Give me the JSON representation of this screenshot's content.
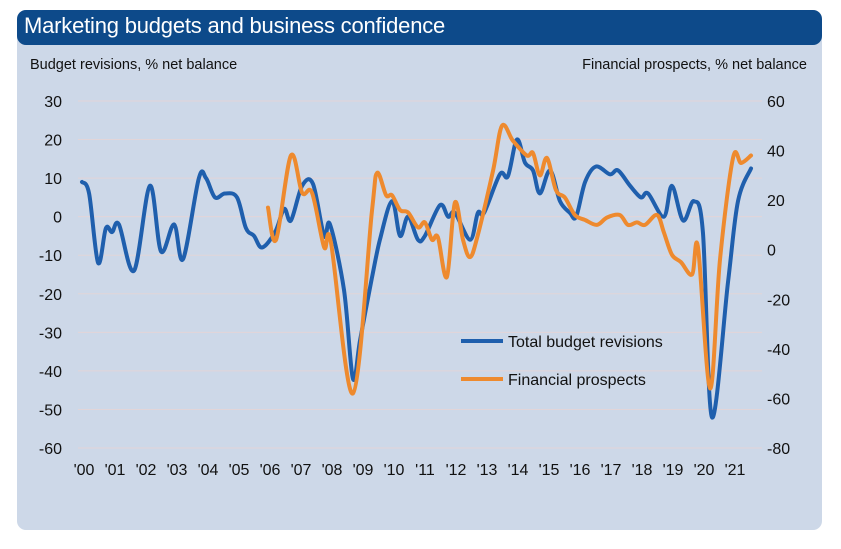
{
  "chart_data": {
    "type": "line",
    "title": "Marketing budgets and business confidence",
    "ylabel_left": "Budget revisions, % net balance",
    "ylabel_right": "Financial prospects, % net balance",
    "xlabel": "",
    "ylim_left": [
      -60,
      30
    ],
    "ylim_right": [
      -80,
      60
    ],
    "yticks_left": [
      30,
      20,
      10,
      0,
      -10,
      -20,
      -30,
      -40,
      -50,
      -60
    ],
    "yticks_right": [
      60,
      40,
      20,
      0,
      -20,
      -40,
      -60,
      -80
    ],
    "xlim": [
      2000,
      2022
    ],
    "xticks": [
      {
        "year": 2000,
        "label": "'00"
      },
      {
        "year": 2001,
        "label": "'01"
      },
      {
        "year": 2002,
        "label": "'02"
      },
      {
        "year": 2003,
        "label": "'03"
      },
      {
        "year": 2004,
        "label": "'04"
      },
      {
        "year": 2005,
        "label": "'05"
      },
      {
        "year": 2006,
        "label": "'06"
      },
      {
        "year": 2007,
        "label": "'07"
      },
      {
        "year": 2008,
        "label": "'08"
      },
      {
        "year": 2009,
        "label": "'09"
      },
      {
        "year": 2010,
        "label": "'10"
      },
      {
        "year": 2011,
        "label": "'11"
      },
      {
        "year": 2012,
        "label": "'12"
      },
      {
        "year": 2013,
        "label": "'13"
      },
      {
        "year": 2014,
        "label": "'14"
      },
      {
        "year": 2015,
        "label": "'15"
      },
      {
        "year": 2016,
        "label": "'16"
      },
      {
        "year": 2017,
        "label": "'17"
      },
      {
        "year": 2018,
        "label": "'18"
      },
      {
        "year": 2019,
        "label": "'19"
      },
      {
        "year": 2020,
        "label": "'20"
      },
      {
        "year": 2021,
        "label": "'21"
      }
    ],
    "grid": true,
    "legend_position": "lower-center",
    "series": [
      {
        "name": "Total budget revisions",
        "axis": "left",
        "color": "#1f5fad",
        "x": [
          2000.0,
          2000.23,
          2000.52,
          2000.77,
          2000.97,
          2001.19,
          2001.68,
          2002.19,
          2002.55,
          2002.97,
          2003.26,
          2003.77,
          2004.0,
          2004.29,
          2004.61,
          2005.0,
          2005.29,
          2005.55,
          2005.81,
          2006.23,
          2006.52,
          2006.74,
          2007.1,
          2007.45,
          2007.81,
          2008.0,
          2008.45,
          2008.74,
          2008.97,
          2009.35,
          2009.61,
          2010.0,
          2010.26,
          2010.52,
          2010.84,
          2011.06,
          2011.55,
          2011.81,
          2012.03,
          2012.52,
          2012.77,
          2012.97,
          2013.48,
          2013.74,
          2014.03,
          2014.29,
          2014.55,
          2014.77,
          2015.1,
          2015.42,
          2015.74,
          2015.94,
          2016.23,
          2016.58,
          2017.03,
          2017.29,
          2017.68,
          2018.03,
          2018.26,
          2018.77,
          2019.03,
          2019.39,
          2019.74,
          2020.03,
          2020.32,
          2020.84,
          2021.16,
          2021.58
        ],
        "values": [
          9,
          6,
          -12,
          -3,
          -4,
          -2,
          -14,
          8,
          -9,
          -2,
          -11,
          10,
          10,
          5,
          6,
          5,
          -3,
          -5,
          -8,
          -4,
          2,
          -1,
          8,
          8.5,
          -5,
          -2,
          -19,
          -42,
          -32,
          -16,
          -6,
          4,
          -5,
          0,
          -6,
          -5,
          3,
          0,
          1,
          -6,
          1,
          1,
          11,
          10.5,
          20,
          14,
          12,
          6,
          12,
          4,
          1,
          0,
          9,
          13,
          11,
          12,
          8,
          5,
          6,
          0,
          8,
          -1,
          4,
          -4,
          -52,
          -17,
          4,
          12.5
        ]
      },
      {
        "name": "Financial prospects",
        "axis": "right",
        "color": "#ee8a2e",
        "x": [
          2006.0,
          2006.26,
          2006.74,
          2007.1,
          2007.42,
          2007.81,
          2008.03,
          2008.74,
          2009.35,
          2009.52,
          2009.81,
          2010.0,
          2010.26,
          2010.52,
          2010.84,
          2011.06,
          2011.29,
          2011.48,
          2011.77,
          2012.03,
          2012.29,
          2012.52,
          2012.77,
          2013.26,
          2013.55,
          2013.9,
          2014.35,
          2014.55,
          2014.77,
          2015.0,
          2015.29,
          2015.58,
          2015.9,
          2016.23,
          2016.61,
          2016.94,
          2017.35,
          2017.61,
          2017.9,
          2018.16,
          2018.55,
          2018.77,
          2019.03,
          2019.32,
          2019.68,
          2019.87,
          2020.26,
          2020.58,
          2021.0,
          2021.26,
          2021.58
        ],
        "values": [
          17,
          4,
          38,
          23,
          23,
          1,
          3,
          -58,
          15,
          31,
          22,
          22,
          16,
          15,
          9,
          11,
          4,
          5,
          -11,
          19,
          4,
          -3,
          6,
          32,
          50,
          44,
          38,
          39,
          30,
          37,
          24,
          21,
          14,
          12,
          10,
          13,
          14,
          10,
          11,
          10,
          14,
          7,
          -2,
          -5,
          -10,
          1,
          -56,
          -4,
          37,
          35,
          38
        ]
      }
    ]
  }
}
